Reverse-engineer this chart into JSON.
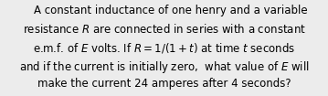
{
  "background_color": "#ececec",
  "text_color": "#000000",
  "fontsize": 8.5,
  "figsize": [
    3.59,
    1.05
  ],
  "dpi": 100,
  "line1": "    A constant inductance of one henry and a variable",
  "line2_pre": "resistance ",
  "line2_R": "R",
  "line2_post": " are connected in series with a constant",
  "line3_pre": "e.m.f. of ",
  "line3_E": "E",
  "line3_mid": " volts. If ",
  "line3_R": "R",
  "line3_eq": " = 1/(1 + ",
  "line3_t": "t",
  "line3_post": ") at time ",
  "line3_t2": "t",
  "line3_end": " seconds",
  "line4_pre": "and if the current is initially zero,  what value of ",
  "line4_E": "E",
  "line4_post": " will",
  "line5": "make the current 24 amperes after 4 seconds?"
}
